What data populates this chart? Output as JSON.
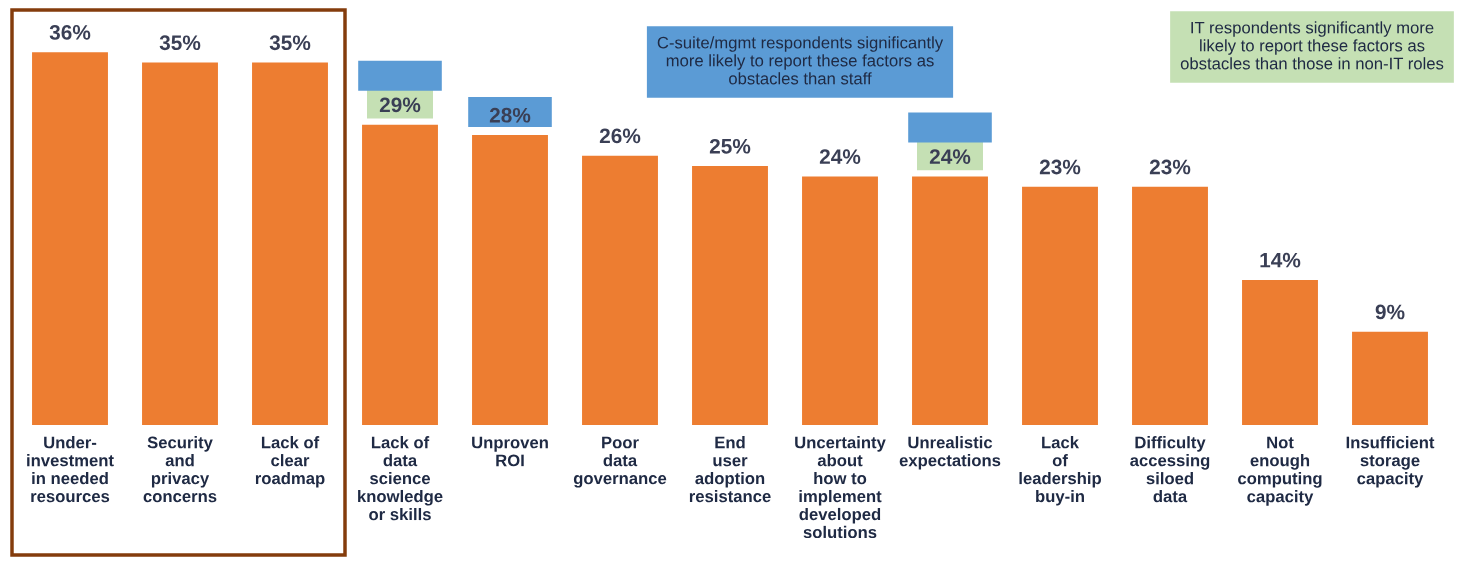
{
  "chart_data": {
    "type": "bar",
    "categories": [
      "Under-\ninvestment\nin needed\nresources",
      "Security\nand\nprivacy\nconcerns",
      "Lack of\nclear\nroadmap",
      "Lack of\ndata\nscience\nknowledge\nor skills",
      "Unproven\nROI",
      "Poor\ndata\ngovernance",
      "End\nuser\nadoption\nresistance",
      "Uncertainty\nabout\nhow to\nimplement\ndeveloped\nsolutions",
      "Unrealistic\nexpectations",
      "Lack\nof\nleadership\nbuy-in",
      "Difficulty\naccessing\nsiloed\ndata",
      "Not\nenough\ncomputing\ncapacity",
      "Insufficient\nstorage\ncapacity"
    ],
    "values": [
      36,
      35,
      35,
      29,
      28,
      26,
      25,
      24,
      24,
      23,
      23,
      14,
      9
    ],
    "color": "#ed7d31",
    "value_labels": [
      "36%",
      "35%",
      "35%",
      "29%",
      "28%",
      "26%",
      "25%",
      "24%",
      "24%",
      "23%",
      "23%",
      "14%",
      "9%"
    ],
    "annotations": [
      "C-suite/mgmt respondents significantly\nmore likely to report these factors as\nobstacles than staff",
      "IT respondents significantly more\nlikely to report these factors as\nobstacles than those in non-IT roles"
    ],
    "grid": false
  }
}
